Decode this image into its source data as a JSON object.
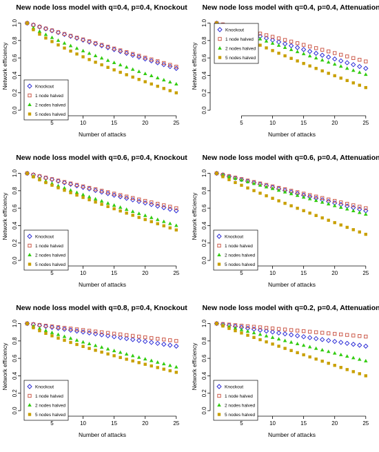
{
  "figure": {
    "colors": {
      "knockout": "#2b2bd6",
      "one_node_halved": "#cc5a4a",
      "two_nodes_halved": "#33cc11",
      "five_nodes_halved": "#c9a000"
    },
    "legend_labels": [
      "Knockout",
      "1 node halved",
      "2 nodes halved",
      "5 nodes halved"
    ]
  },
  "chart_data": [
    {
      "type": "scatter",
      "title": "New node loss model with q=0.4, p=0.4, Knockout",
      "xlabel": "Number of attacks",
      "ylabel": "Network efficiency",
      "xlim": [
        1,
        25
      ],
      "ylim": [
        0,
        1
      ],
      "xticks": [
        5,
        10,
        15,
        20,
        25
      ],
      "yticks": [
        "0.0",
        "0.2",
        "0.4",
        "0.6",
        "0.8",
        "1.0"
      ],
      "legend_position": "bottom-left",
      "series": [
        {
          "name": "Knockout",
          "marker": "diamond",
          "start": 1.0,
          "end": 0.48,
          "shape": 1.0
        },
        {
          "name": "1 node halved",
          "marker": "square-open",
          "start": 1.0,
          "end": 0.5,
          "shape": 1.0
        },
        {
          "name": "2 nodes halved",
          "marker": "triangle",
          "start": 1.0,
          "end": 0.3,
          "shape": 1.25
        },
        {
          "name": "5 nodes halved",
          "marker": "square-filled",
          "start": 1.0,
          "end": 0.2,
          "shape": 1.35
        }
      ]
    },
    {
      "type": "scatter",
      "title": "New node loss model with q=0.4, p=0.4, Attenuation",
      "xlabel": "Number of attacks",
      "ylabel": "Network efficiency",
      "xlim": [
        1,
        25
      ],
      "ylim": [
        0,
        1
      ],
      "xticks": [
        5,
        10,
        15,
        20,
        25
      ],
      "yticks": [
        "0.0",
        "0.2",
        "0.4",
        "0.6",
        "0.8",
        "1.0"
      ],
      "legend_position": "top-right",
      "series": [
        {
          "name": "Knockout",
          "marker": "diamond",
          "start": 1.0,
          "end": 0.48,
          "shape": 1.0
        },
        {
          "name": "1 node halved",
          "marker": "square-open",
          "start": 1.0,
          "end": 0.56,
          "shape": 0.95
        },
        {
          "name": "2 nodes halved",
          "marker": "triangle",
          "start": 1.0,
          "end": 0.41,
          "shape": 1.05
        },
        {
          "name": "5 nodes halved",
          "marker": "square-filled",
          "start": 1.0,
          "end": 0.26,
          "shape": 1.15
        }
      ]
    },
    {
      "type": "scatter",
      "title": "New node loss model with q=0.6, p=0.4, Knockout",
      "xlabel": "Number of attacks",
      "ylabel": "Network efficiency",
      "xlim": [
        1,
        25
      ],
      "ylim": [
        0,
        1
      ],
      "xticks": [
        5,
        10,
        15,
        20,
        25
      ],
      "yticks": [
        "0.0",
        "0.2",
        "0.4",
        "0.6",
        "0.8",
        "1.0"
      ],
      "legend_position": "bottom-left",
      "series": [
        {
          "name": "Knockout",
          "marker": "diamond",
          "start": 1.0,
          "end": 0.57,
          "shape": 1.0
        },
        {
          "name": "1 node halved",
          "marker": "square-open",
          "start": 1.0,
          "end": 0.6,
          "shape": 1.0
        },
        {
          "name": "2 nodes halved",
          "marker": "triangle",
          "start": 1.0,
          "end": 0.4,
          "shape": 1.1
        },
        {
          "name": "5 nodes halved",
          "marker": "square-filled",
          "start": 1.0,
          "end": 0.35,
          "shape": 1.15
        }
      ]
    },
    {
      "type": "scatter",
      "title": "New node loss model with q=0.6, p=0.4, Attenuation",
      "xlabel": "Number of attacks",
      "ylabel": "Network efficiency",
      "xlim": [
        1,
        25
      ],
      "ylim": [
        0,
        1
      ],
      "xticks": [
        5,
        10,
        15,
        20,
        25
      ],
      "yticks": [
        "0.0",
        "0.2",
        "0.4",
        "0.6",
        "0.8",
        "1.0"
      ],
      "legend_position": "bottom-left",
      "series": [
        {
          "name": "Knockout",
          "marker": "diamond",
          "start": 1.0,
          "end": 0.57,
          "shape": 1.0
        },
        {
          "name": "1 node halved",
          "marker": "square-open",
          "start": 1.0,
          "end": 0.6,
          "shape": 1.0
        },
        {
          "name": "2 nodes halved",
          "marker": "triangle",
          "start": 1.0,
          "end": 0.53,
          "shape": 1.0
        },
        {
          "name": "5 nodes halved",
          "marker": "square-filled",
          "start": 1.0,
          "end": 0.3,
          "shape": 1.1
        }
      ]
    },
    {
      "type": "scatter",
      "title": "New node loss model with q=0.8, p=0.4, Knockout",
      "xlabel": "Number of attacks",
      "ylabel": "Network efficiency",
      "xlim": [
        1,
        25
      ],
      "ylim": [
        0,
        1
      ],
      "xticks": [
        5,
        10,
        15,
        20,
        25
      ],
      "yticks": [
        "0.0",
        "0.2",
        "0.4",
        "0.6",
        "0.8",
        "1.0"
      ],
      "legend_position": "bottom-left",
      "series": [
        {
          "name": "Knockout",
          "marker": "diamond",
          "start": 1.0,
          "end": 0.74,
          "shape": 1.0
        },
        {
          "name": "1 node halved",
          "marker": "square-open",
          "start": 1.0,
          "end": 0.8,
          "shape": 1.0
        },
        {
          "name": "2 nodes halved",
          "marker": "triangle",
          "start": 1.0,
          "end": 0.5,
          "shape": 1.15
        },
        {
          "name": "5 nodes halved",
          "marker": "square-filled",
          "start": 1.0,
          "end": 0.44,
          "shape": 1.3
        }
      ]
    },
    {
      "type": "scatter",
      "title": "New node loss model with q=0.2, p=0.4, Attenuation",
      "xlabel": "Number of attacks",
      "ylabel": "Network efficiency",
      "xlim": [
        1,
        25
      ],
      "ylim": [
        0,
        1
      ],
      "xticks": [
        5,
        10,
        15,
        20,
        25
      ],
      "yticks": [
        "0.0",
        "0.2",
        "0.4",
        "0.6",
        "0.8",
        "1.0"
      ],
      "legend_position": "bottom-left",
      "series": [
        {
          "name": "Knockout",
          "marker": "diamond",
          "start": 1.0,
          "end": 0.74,
          "shape": 1.0
        },
        {
          "name": "1 node halved",
          "marker": "square-open",
          "start": 1.0,
          "end": 0.85,
          "shape": 1.0
        },
        {
          "name": "2 nodes halved",
          "marker": "triangle",
          "start": 1.0,
          "end": 0.57,
          "shape": 1.0
        },
        {
          "name": "5 nodes halved",
          "marker": "square-filled",
          "start": 1.0,
          "end": 0.4,
          "shape": 1.05
        }
      ]
    }
  ]
}
